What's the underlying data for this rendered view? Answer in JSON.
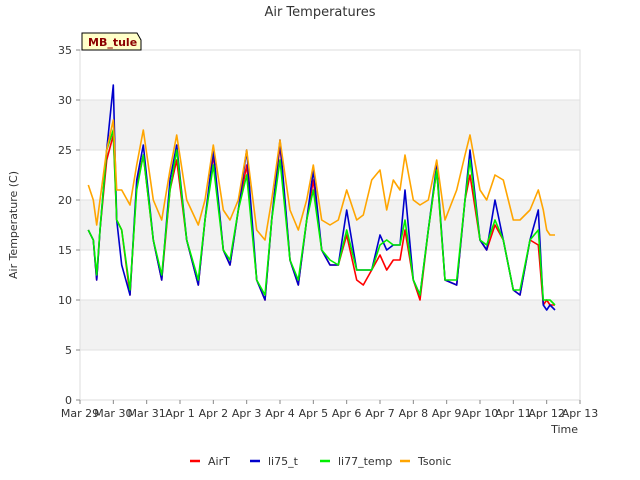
{
  "chart_data": {
    "type": "line",
    "title": "Air Temperatures",
    "xlabel": "Time",
    "ylabel": "Air Temperature (C)",
    "station_tag": "MB_tule",
    "x_ticks": [
      "Mar 29",
      "Mar 30",
      "Mar 31",
      "Apr 1",
      "Apr 2",
      "Apr 3",
      "Apr 4",
      "Apr 5",
      "Apr 6",
      "Apr 7",
      "Apr 8",
      "Apr 9",
      "Apr 10",
      "Apr 11",
      "Apr 12",
      "Apr 13"
    ],
    "xlim": [
      0,
      15
    ],
    "ylim": [
      0,
      35
    ],
    "y_ticks": [
      0,
      5,
      10,
      15,
      20,
      25,
      30,
      35
    ],
    "grid": true,
    "legend_position": "bottom",
    "series": [
      {
        "name": "AirT",
        "color": "#ff0000",
        "x": [
          0.25,
          0.4,
          0.5,
          0.6,
          0.8,
          1.0,
          1.1,
          1.25,
          1.5,
          1.7,
          1.9,
          2.2,
          2.45,
          2.7,
          2.9,
          3.2,
          3.55,
          3.75,
          4.0,
          4.3,
          4.5,
          4.75,
          5.0,
          5.3,
          5.55,
          5.75,
          6.0,
          6.3,
          6.55,
          6.8,
          7.0,
          7.25,
          7.5,
          7.75,
          8.0,
          8.3,
          8.5,
          8.75,
          9.0,
          9.2,
          9.4,
          9.6,
          9.75,
          10.0,
          10.2,
          10.45,
          10.7,
          10.95,
          11.3,
          11.55,
          11.7,
          12.0,
          12.2,
          12.45,
          12.7,
          13.0,
          13.2,
          13.5,
          13.75,
          13.9,
          14.0,
          14.1,
          14.25
        ],
        "y": [
          17,
          16,
          12,
          17,
          24,
          26.5,
          18,
          17,
          10.5,
          21.5,
          24.5,
          16,
          12,
          21,
          24,
          16,
          11.5,
          18,
          24.5,
          15,
          13.5,
          19,
          23.5,
          12,
          10,
          18,
          25.5,
          14,
          11.5,
          18,
          22,
          15,
          13.5,
          13.5,
          16.5,
          12,
          11.5,
          13,
          14.5,
          13,
          14,
          14,
          17,
          12,
          10,
          17,
          23,
          12,
          11.5,
          20,
          22.5,
          16,
          15,
          17.5,
          16,
          11,
          10.5,
          16,
          15.5,
          9.5,
          10,
          9.5,
          9.5
        ]
      },
      {
        "name": "li75_t",
        "color": "#0000cc",
        "x": [
          0.25,
          0.4,
          0.5,
          0.6,
          0.8,
          1.0,
          1.1,
          1.25,
          1.5,
          1.7,
          1.9,
          2.2,
          2.45,
          2.7,
          2.9,
          3.2,
          3.55,
          3.75,
          4.0,
          4.3,
          4.5,
          4.75,
          5.0,
          5.3,
          5.55,
          5.75,
          6.0,
          6.3,
          6.55,
          6.8,
          7.0,
          7.25,
          7.5,
          7.75,
          8.0,
          8.3,
          8.5,
          8.75,
          9.0,
          9.2,
          9.4,
          9.6,
          9.75,
          10.0,
          10.2,
          10.45,
          10.7,
          10.95,
          11.3,
          11.55,
          11.7,
          12.0,
          12.2,
          12.45,
          12.7,
          13.0,
          13.2,
          13.5,
          13.75,
          13.9,
          14.0,
          14.1,
          14.25
        ],
        "y": [
          17,
          16,
          12,
          17,
          25,
          31.5,
          18,
          13.5,
          10.5,
          22,
          25.5,
          16,
          12,
          22,
          25.5,
          16,
          11.5,
          18,
          25,
          15,
          13.5,
          19,
          25,
          12,
          10,
          18,
          26,
          14,
          11.5,
          18,
          23,
          15,
          13.5,
          13.5,
          19,
          13,
          13,
          13,
          16.5,
          15,
          15.5,
          15.5,
          21,
          12,
          10.5,
          17,
          23.5,
          12,
          11.5,
          20,
          25,
          16,
          15,
          20,
          16,
          11,
          10.5,
          16,
          19,
          9.5,
          9,
          9.5,
          9
        ]
      },
      {
        "name": "li77_temp",
        "color": "#00ee00",
        "x": [
          0.25,
          0.4,
          0.5,
          0.6,
          0.8,
          1.0,
          1.1,
          1.25,
          1.5,
          1.7,
          1.9,
          2.2,
          2.45,
          2.7,
          2.9,
          3.2,
          3.55,
          3.75,
          4.0,
          4.3,
          4.5,
          4.75,
          5.0,
          5.3,
          5.55,
          5.75,
          6.0,
          6.3,
          6.55,
          6.8,
          7.0,
          7.25,
          7.5,
          7.75,
          8.0,
          8.3,
          8.5,
          8.75,
          9.0,
          9.2,
          9.4,
          9.6,
          9.75,
          10.0,
          10.2,
          10.45,
          10.7,
          10.95,
          11.3,
          11.55,
          11.7,
          12.0,
          12.2,
          12.45,
          12.7,
          13.0,
          13.2,
          13.5,
          13.75,
          13.9,
          14.0,
          14.1,
          14.25
        ],
        "y": [
          17,
          16,
          12.5,
          17,
          25,
          27,
          18,
          17,
          11,
          21,
          24.5,
          16,
          12.5,
          21,
          25,
          16,
          12,
          18,
          23.5,
          15,
          14,
          19,
          22.5,
          12,
          10.5,
          18,
          24,
          14,
          12,
          18,
          21,
          15,
          14,
          13.5,
          17,
          13,
          13,
          13,
          15.5,
          16,
          15.5,
          15.5,
          18,
          12,
          10.5,
          17,
          23,
          12,
          12,
          20,
          24,
          16,
          15.5,
          18,
          16,
          11,
          11,
          16,
          17,
          10,
          10,
          10,
          9.5
        ]
      },
      {
        "name": "Tsonic",
        "color": "#ffa500",
        "x": [
          0.25,
          0.4,
          0.5,
          0.6,
          0.8,
          1.0,
          1.1,
          1.25,
          1.5,
          1.7,
          1.9,
          2.2,
          2.45,
          2.7,
          2.9,
          3.2,
          3.55,
          3.75,
          4.0,
          4.3,
          4.5,
          4.75,
          5.0,
          5.3,
          5.55,
          5.75,
          6.0,
          6.3,
          6.55,
          6.8,
          7.0,
          7.25,
          7.5,
          7.75,
          8.0,
          8.3,
          8.5,
          8.75,
          9.0,
          9.2,
          9.4,
          9.6,
          9.75,
          10.0,
          10.2,
          10.45,
          10.7,
          10.95,
          11.3,
          11.55,
          11.7,
          12.0,
          12.2,
          12.45,
          12.7,
          13.0,
          13.2,
          13.5,
          13.75,
          13.9,
          14.0,
          14.1,
          14.25
        ],
        "y": [
          21.5,
          20,
          17.5,
          20,
          25,
          28,
          21,
          21,
          19.5,
          23.5,
          27,
          20,
          18,
          23,
          26.5,
          20,
          17.5,
          20,
          25.5,
          19,
          18,
          20,
          25,
          17,
          16,
          20,
          26,
          19,
          17,
          20,
          23.5,
          18,
          17.5,
          18,
          21,
          18,
          18.5,
          22,
          23,
          19,
          22,
          21,
          24.5,
          20,
          19.5,
          20,
          24,
          18,
          21,
          24.5,
          26.5,
          21,
          20,
          22.5,
          22,
          18,
          18,
          19,
          21,
          19,
          17,
          16.5,
          16.5
        ]
      }
    ]
  }
}
